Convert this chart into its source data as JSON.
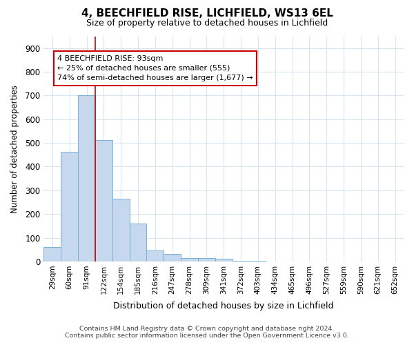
{
  "title": "4, BEECHFIELD RISE, LICHFIELD, WS13 6EL",
  "subtitle": "Size of property relative to detached houses in Lichfield",
  "xlabel": "Distribution of detached houses by size in Lichfield",
  "ylabel": "Number of detached properties",
  "categories": [
    "29sqm",
    "60sqm",
    "91sqm",
    "122sqm",
    "154sqm",
    "185sqm",
    "216sqm",
    "247sqm",
    "278sqm",
    "309sqm",
    "341sqm",
    "372sqm",
    "403sqm",
    "434sqm",
    "465sqm",
    "496sqm",
    "527sqm",
    "559sqm",
    "590sqm",
    "621sqm",
    "652sqm"
  ],
  "values": [
    60,
    462,
    700,
    513,
    265,
    160,
    47,
    33,
    14,
    14,
    10,
    4,
    4,
    0,
    0,
    0,
    0,
    0,
    0,
    0,
    0
  ],
  "bar_color": "#c5d8ee",
  "bar_edge_color": "#7aafd4",
  "ylim": [
    0,
    950
  ],
  "yticks": [
    0,
    100,
    200,
    300,
    400,
    500,
    600,
    700,
    800,
    900
  ],
  "property_line_x": 2.5,
  "property_line_color": "#cc0000",
  "annotation_text": "4 BEECHFIELD RISE: 93sqm\n← 25% of detached houses are smaller (555)\n74% of semi-detached houses are larger (1,677) →",
  "annotation_box_color": "#cc0000",
  "footer_line1": "Contains HM Land Registry data © Crown copyright and database right 2024.",
  "footer_line2": "Contains public sector information licensed under the Open Government Licence v3.0.",
  "background_color": "#ffffff",
  "grid_color": "#d8e4f0"
}
